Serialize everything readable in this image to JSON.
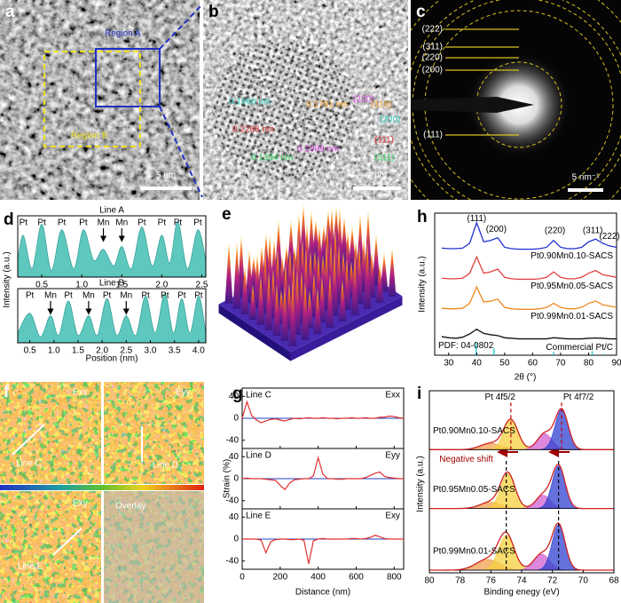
{
  "panel_labels": [
    "a",
    "b",
    "c",
    "d",
    "e",
    "f",
    "g",
    "h",
    "i"
  ],
  "image_a": {
    "region_a": "Region A",
    "region_b": "Region B",
    "scale_bar": "5 nm"
  },
  "image_b": {
    "scale_bar": "2 nm",
    "annotations": [
      "0.1966 nm",
      "0.2268 nm",
      "0.1781 nm",
      "0.1394 nm",
      "0.1989 nm",
      "(220)",
      "(310)",
      "(200)",
      "(111)",
      "(311)"
    ]
  },
  "image_c": {
    "rings": [
      "(222)",
      "(311)",
      "(220)",
      "(200)",
      "(111)"
    ],
    "scale_bar": "5 nm⁻¹"
  },
  "image_f": {
    "maps": [
      "Exx",
      "Eyy",
      "Exy",
      "Overlay"
    ],
    "lines": [
      "Line C",
      "Line D",
      "Line E"
    ]
  },
  "chart_data": [
    {
      "type": "area",
      "xlabel": "Position (nm)",
      "ylabel": "Intensity (a.u.)",
      "color": "#5ec8bf",
      "ylim": [
        0,
        1.1
      ],
      "panels": [
        {
          "title": "Line A",
          "xlim": [
            0.2,
            2.55
          ],
          "xticks": [
            0.5,
            {
              "value": 1,
              "label": "1.0"
            },
            1.5,
            {
              "value": 2,
              "label": "2.0"
            },
            2.5
          ],
          "x": [
            0.2,
            0.27,
            0.38,
            0.5,
            0.62,
            0.75,
            0.9,
            1.02,
            1.15,
            1.27,
            1.4,
            1.5,
            1.62,
            1.75,
            1.88,
            2.0,
            2.1,
            2.2,
            2.32,
            2.45,
            2.55
          ],
          "values": [
            0.3,
            0.75,
            0.15,
            0.95,
            0.12,
            0.85,
            0.15,
            0.85,
            0.3,
            0.5,
            0.2,
            0.55,
            0.15,
            0.9,
            0.2,
            0.75,
            0.25,
            1.0,
            0.15,
            0.85,
            0.3
          ],
          "annotations": [
            {
              "x": 0.27,
              "text": "Pt"
            },
            {
              "x": 0.5,
              "text": "Pt"
            },
            {
              "x": 0.75,
              "text": "Pt"
            },
            {
              "x": 1.02,
              "text": "Pt"
            },
            {
              "x": 1.27,
              "text": "Mn",
              "arrow": true
            },
            {
              "x": 1.5,
              "text": "Mn",
              "arrow": true
            },
            {
              "x": 1.75,
              "text": "Pt"
            },
            {
              "x": 2.0,
              "text": "Pt"
            },
            {
              "x": 2.2,
              "text": "Pt"
            },
            {
              "x": 2.45,
              "text": "Pt"
            }
          ]
        },
        {
          "title": "Line B",
          "xlim": [
            0.25,
            4.15
          ],
          "xticks": [
            0.5,
            {
              "value": 1,
              "label": "1.0"
            },
            1.5,
            {
              "value": 2,
              "label": "2.0"
            },
            2.5,
            {
              "value": 3,
              "label": "3.0"
            },
            3.5,
            {
              "value": 4,
              "label": "4.0"
            }
          ],
          "x": [
            0.25,
            0.5,
            0.72,
            0.93,
            1.1,
            1.3,
            1.5,
            1.72,
            1.9,
            2.1,
            2.3,
            2.5,
            2.7,
            2.9,
            3.1,
            3.3,
            3.48,
            3.65,
            3.82,
            4.0,
            4.15
          ],
          "values": [
            0.2,
            0.6,
            0.12,
            0.55,
            0.15,
            0.85,
            0.15,
            0.55,
            0.15,
            0.9,
            0.15,
            0.55,
            0.15,
            0.95,
            0.2,
            1.0,
            0.2,
            0.9,
            0.2,
            0.95,
            0.2
          ],
          "annotations": [
            {
              "x": 0.5,
              "text": "Pt"
            },
            {
              "x": 0.93,
              "text": "Mn",
              "arrow": true
            },
            {
              "x": 1.3,
              "text": "Pt"
            },
            {
              "x": 1.72,
              "text": "Mn",
              "arrow": true
            },
            {
              "x": 2.1,
              "text": "Pt"
            },
            {
              "x": 2.5,
              "text": "Mn",
              "arrow": true
            },
            {
              "x": 2.9,
              "text": "Pt"
            },
            {
              "x": 3.3,
              "text": "Pt"
            },
            {
              "x": 3.65,
              "text": "Pt"
            },
            {
              "x": 4.0,
              "text": "Pt"
            }
          ]
        }
      ]
    },
    {
      "type": "line",
      "xlabel": "Distance (nm)",
      "ylabel": "Strain (%)",
      "color": "#e03030",
      "zero_color": "#2040c0",
      "xlim": [
        0,
        850
      ],
      "xticks": [
        0,
        200,
        400,
        600,
        800
      ],
      "x": [
        0,
        25,
        50,
        75,
        100,
        125,
        150,
        175,
        200,
        225,
        250,
        275,
        300,
        325,
        350,
        375,
        400,
        425,
        450,
        475,
        500,
        525,
        550,
        575,
        600,
        625,
        650,
        675,
        700,
        725,
        750,
        775,
        800,
        825,
        850
      ],
      "panels": [
        {
          "title": "Line C",
          "component": "Exx",
          "ylim": [
            -55,
            55
          ],
          "yticks": [
            -40,
            0,
            40
          ],
          "values": [
            0,
            30,
            5,
            -3,
            -8,
            -5,
            -2,
            -1,
            -3,
            -5,
            -2,
            0,
            -1,
            0,
            1,
            0,
            0,
            1,
            0,
            0,
            -1,
            0,
            0,
            1,
            0,
            0,
            1,
            0,
            0,
            2,
            2,
            4,
            3,
            1,
            0
          ]
        },
        {
          "title": "Line D",
          "component": "Eyy",
          "ylim": [
            -55,
            55
          ],
          "yticks": [
            -40,
            0,
            40
          ],
          "values": [
            0,
            1,
            0,
            0,
            0,
            -1,
            -2,
            -3,
            -12,
            -20,
            -8,
            -2,
            -1,
            0,
            0,
            5,
            38,
            8,
            0,
            0,
            -1,
            -1,
            0,
            0,
            0,
            0,
            2,
            6,
            10,
            12,
            4,
            2,
            1,
            0,
            0
          ]
        },
        {
          "title": "Line E",
          "component": "Exy",
          "ylim": [
            -55,
            55
          ],
          "yticks": [
            -40,
            0,
            40
          ],
          "values": [
            0,
            0,
            0,
            0,
            -2,
            -25,
            -5,
            -1,
            0,
            0,
            -1,
            -1,
            0,
            -2,
            -45,
            -3,
            0,
            1,
            0,
            0,
            0,
            0,
            0,
            1,
            1,
            0,
            1,
            3,
            7,
            4,
            1,
            0,
            0,
            0,
            0
          ]
        }
      ]
    },
    {
      "type": "line",
      "xlabel": "2θ (°)",
      "ylabel": "Intensity (a.u.)",
      "xlim": [
        25,
        90
      ],
      "xticks": [
        30,
        40,
        50,
        60,
        70,
        80,
        90
      ],
      "ylim": [
        0,
        5.2
      ],
      "x": [
        27.5,
        30,
        32.5,
        35,
        37.5,
        40,
        42.5,
        45,
        47.5,
        50,
        52.5,
        55,
        57.5,
        60,
        62.5,
        65,
        67.5,
        70,
        72.5,
        75,
        77.5,
        80,
        82.5,
        85,
        87.5,
        90
      ],
      "series": [
        {
          "name": "Pt0.90Mn0.10-SACS",
          "color": "#2030d0",
          "values": [
            3.92,
            3.9,
            3.9,
            3.92,
            4.1,
            4.85,
            4.15,
            4.2,
            4.3,
            3.95,
            3.9,
            3.88,
            3.88,
            3.88,
            3.9,
            3.95,
            4.2,
            3.95,
            3.9,
            3.9,
            3.95,
            4.15,
            4.25,
            4.1,
            4.0,
            3.95
          ]
        },
        {
          "name": "Pt0.95Mn0.05-SACS",
          "color": "#e04040",
          "values": [
            2.82,
            2.8,
            2.8,
            2.82,
            3.0,
            3.6,
            3.0,
            3.05,
            3.15,
            2.85,
            2.8,
            2.78,
            2.78,
            2.78,
            2.8,
            2.85,
            3.05,
            2.85,
            2.8,
            2.8,
            2.85,
            3.0,
            3.1,
            2.95,
            2.9,
            2.85
          ]
        },
        {
          "name": "Pt0.99Mn0.01-SACS",
          "color": "#f08a20",
          "values": [
            1.72,
            1.7,
            1.7,
            1.72,
            1.9,
            2.5,
            1.95,
            1.98,
            2.05,
            1.75,
            1.7,
            1.68,
            1.68,
            1.68,
            1.7,
            1.75,
            1.9,
            1.75,
            1.7,
            1.7,
            1.75,
            1.9,
            1.98,
            1.85,
            1.8,
            1.75
          ]
        },
        {
          "name": "Commercial Pt/C",
          "color": "#111111",
          "values": [
            0.68,
            0.64,
            0.62,
            0.66,
            0.78,
            0.95,
            0.8,
            0.75,
            0.72,
            0.64,
            0.62,
            0.6,
            0.6,
            0.6,
            0.6,
            0.6,
            0.64,
            0.62,
            0.6,
            0.6,
            0.6,
            0.62,
            0.63,
            0.62,
            0.6,
            0.6
          ]
        }
      ],
      "reference": {
        "name": "PDF: 04-0802",
        "color": "#33cccc",
        "x": [
          39.8,
          46.2,
          67.5,
          81.3,
          85.7
        ],
        "values": [
          0.45,
          0.25,
          0.12,
          0.15,
          0.05
        ]
      },
      "annotations": [
        {
          "x": 40,
          "y": 5.0,
          "text": "(111)"
        },
        {
          "x": 47,
          "y": 4.6,
          "text": "(200)"
        },
        {
          "x": 68,
          "y": 4.55,
          "text": "(220)"
        },
        {
          "x": 81.5,
          "y": 4.55,
          "text": "(311)"
        },
        {
          "x": 87.5,
          "y": 4.35,
          "text": "(222)"
        }
      ]
    },
    {
      "type": "fit",
      "xlabel": "Binding enegy (eV)",
      "ylabel": "Intensity (a.u.)",
      "xlim": [
        80,
        68
      ],
      "xticks": [
        80,
        78,
        76,
        74,
        72,
        70,
        68
      ],
      "ylim": [
        0,
        3.4
      ],
      "envelope_color": "#d02020",
      "spectra": [
        {
          "name": "Pt0.90Mn0.10-SACS",
          "offset": 2.3,
          "components": [
            {
              "center": 76.0,
              "height": 0.12,
              "fwhm": 1.6,
              "color": "#f0a050"
            },
            {
              "center": 74.7,
              "height": 0.55,
              "fwhm": 1.1,
              "color": "#f5d040"
            },
            {
              "center": 72.5,
              "height": 0.3,
              "fwhm": 1.1,
              "color": "#d060d0"
            },
            {
              "center": 71.4,
              "height": 0.75,
              "fwhm": 1.0,
              "color": "#3040d0"
            }
          ]
        },
        {
          "name": "Pt0.95Mn0.05-SACS",
          "offset": 1.2,
          "components": [
            {
              "center": 76.0,
              "height": 0.12,
              "fwhm": 1.6,
              "color": "#f0a050"
            },
            {
              "center": 74.9,
              "height": 0.65,
              "fwhm": 1.1,
              "color": "#f5d040"
            },
            {
              "center": 72.6,
              "height": 0.25,
              "fwhm": 1.1,
              "color": "#d060d0"
            },
            {
              "center": 71.6,
              "height": 0.8,
              "fwhm": 1.0,
              "color": "#3040d0"
            }
          ]
        },
        {
          "name": "Pt0.99Mn0.01-SACS",
          "offset": 0.05,
          "components": [
            {
              "center": 76.2,
              "height": 0.2,
              "fwhm": 1.8,
              "color": "#f0a050"
            },
            {
              "center": 75.0,
              "height": 0.65,
              "fwhm": 1.2,
              "color": "#f5d040"
            },
            {
              "center": 72.7,
              "height": 0.3,
              "fwhm": 1.2,
              "color": "#d060d0"
            },
            {
              "center": 71.6,
              "height": 0.85,
              "fwhm": 1.0,
              "color": "#3040d0"
            }
          ]
        }
      ],
      "reference_lines": [
        {
          "x": 74.7,
          "y": [
            2.3,
            3.2
          ],
          "color": "#c00000"
        },
        {
          "x": 71.4,
          "y": [
            2.3,
            3.2
          ],
          "color": "#c00000"
        },
        {
          "x": 75.0,
          "y": [
            0.05,
            2.1
          ],
          "color": "#000000"
        },
        {
          "x": 71.6,
          "y": [
            0.05,
            2.1
          ],
          "color": "#000000"
        }
      ],
      "annotations": [
        {
          "x": 75.4,
          "y": 3.28,
          "text": "Pt 4f5/2"
        },
        {
          "x": 70.3,
          "y": 3.28,
          "text": "Pt 4f7/2"
        },
        {
          "x": 77.6,
          "y": 2.12,
          "text": "Negative shift",
          "color": "#a00000"
        }
      ]
    }
  ]
}
